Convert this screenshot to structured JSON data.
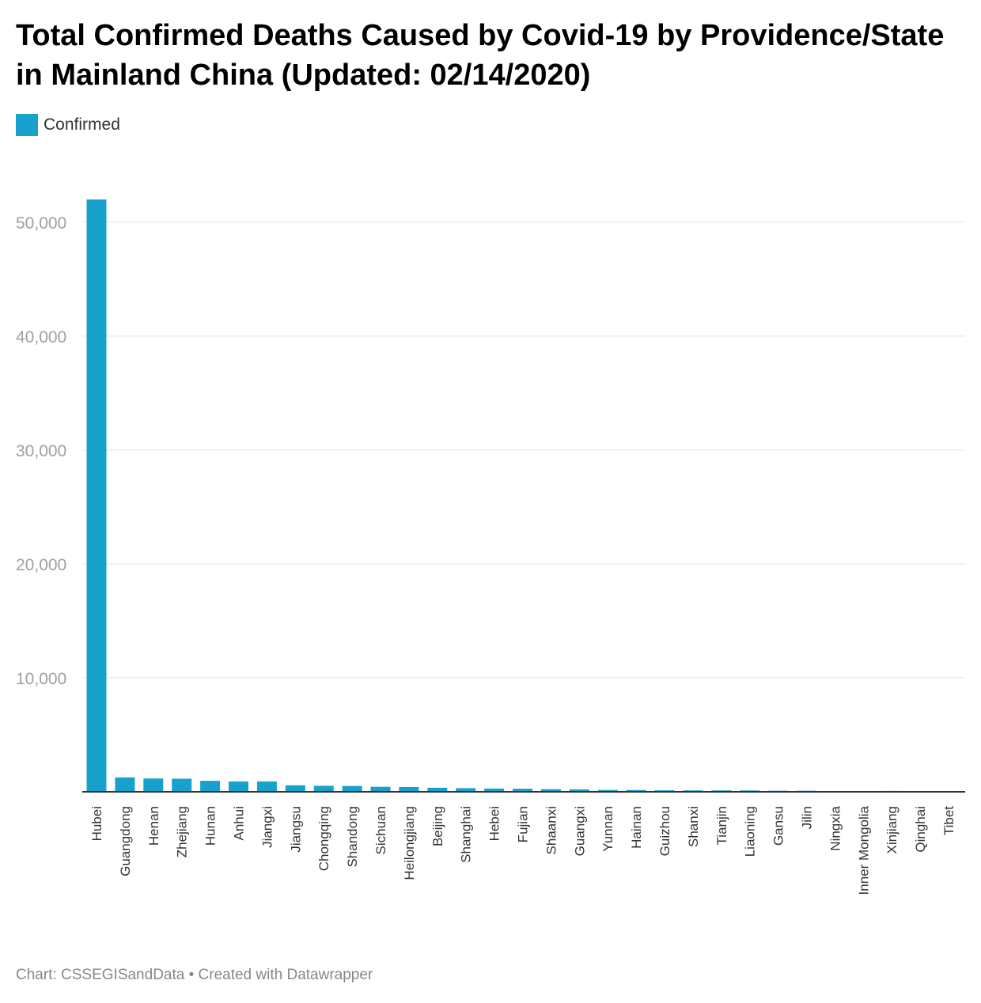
{
  "chart_data": {
    "type": "bar",
    "title": "Total Confirmed Deaths Caused by Covid-19 by Providence/State in Mainland China (Updated: 02/14/2020)",
    "xlabel": "",
    "ylabel": "",
    "ylim": [
      0,
      52500
    ],
    "yticks": [
      10000,
      20000,
      30000,
      40000,
      50000
    ],
    "ytick_labels": [
      "10,000",
      "20,000",
      "30,000",
      "40,000",
      "50,000"
    ],
    "grid": true,
    "legend_position": "top-left",
    "series": [
      {
        "name": "Confirmed",
        "color": "#18a1cd",
        "values": [
          51986,
          1261,
          1169,
          1145,
          968,
          910,
          907,
          570,
          529,
          513,
          436,
          418,
          352,
          318,
          283,
          272,
          229,
          218,
          162,
          157,
          135,
          126,
          124,
          119,
          87,
          87,
          70,
          72,
          76,
          18,
          1
        ]
      }
    ],
    "categories": [
      "Hubei",
      "Guangdong",
      "Henan",
      "Zhejiang",
      "Hunan",
      "Anhui",
      "Jiangxi",
      "Jiangsu",
      "Chongqing",
      "Shandong",
      "Sichuan",
      "Heilongjiang",
      "Beijing",
      "Shanghai",
      "Hebei",
      "Fujian",
      "Shaanxi",
      "Guangxi",
      "Yunnan",
      "Hainan",
      "Guizhou",
      "Shanxi",
      "Tianjin",
      "Liaoning",
      "Gansu",
      "Jilin",
      "Ningxia",
      "Inner Mongolia",
      "Xinjiang",
      "Qinghai",
      "Tibet"
    ]
  },
  "footer": {
    "text": "Chart: CSSEGISandData • Created with Datawrapper"
  }
}
